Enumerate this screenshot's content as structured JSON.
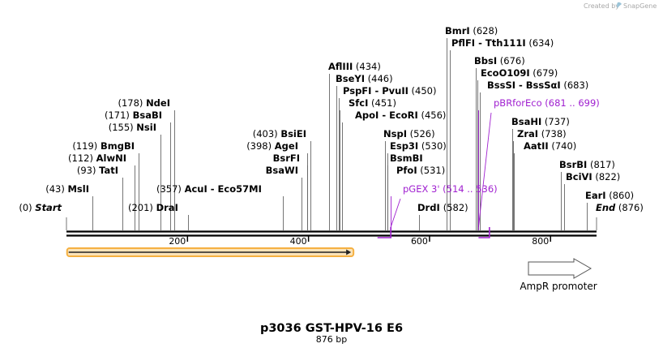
{
  "credit": {
    "text": "Created by",
    "brand": "SnapGene"
  },
  "title": "p3036 GST-HPV-16 E6",
  "subtitle": "876 bp",
  "scale": {
    "min": 0,
    "max": 876,
    "ticks": [
      200,
      400,
      600,
      800
    ]
  },
  "labels": [
    {
      "name": "Start",
      "pos": 0,
      "label_pos": "(0)",
      "kind": "end",
      "anchor": "end"
    },
    {
      "name": "MslI",
      "pos": 43,
      "label_pos": "(43)",
      "kind": "enzyme",
      "anchor": "end"
    },
    {
      "name": "TatI",
      "pos": 93,
      "label_pos": "(93)",
      "kind": "enzyme",
      "anchor": "end"
    },
    {
      "name": "AlwNI",
      "pos": 112,
      "label_pos": "(112)",
      "kind": "enzyme",
      "anchor": "end"
    },
    {
      "name": "BmgBI",
      "pos": 119,
      "label_pos": "(119)",
      "kind": "enzyme",
      "anchor": "end"
    },
    {
      "name": "NsiI",
      "pos": 155,
      "label_pos": "(155)",
      "kind": "enzyme",
      "anchor": "end"
    },
    {
      "name": "BsaBI",
      "pos": 171,
      "label_pos": "(171)",
      "kind": "enzyme",
      "anchor": "end"
    },
    {
      "name": "NdeI",
      "pos": 178,
      "label_pos": "(178)",
      "kind": "enzyme",
      "anchor": "end"
    },
    {
      "name": "DraI",
      "pos": 201,
      "label_pos": "(201)",
      "kind": "enzyme",
      "anchor": "start"
    },
    {
      "name": "AcuI  -  Eco57MI",
      "pos": 357,
      "label_pos": "(357)",
      "kind": "enzyme",
      "anchor": "end"
    },
    {
      "name": "BsaWI",
      "pos": 388,
      "label_pos": "",
      "kind": "enzyme",
      "anchor": "end"
    },
    {
      "name": "BsrFI",
      "pos": 398,
      "label_pos": "",
      "kind": "enzyme",
      "anchor": "end"
    },
    {
      "name": "AgeI",
      "pos": 398,
      "label_pos": "(398)",
      "kind": "enzyme",
      "anchor": "end"
    },
    {
      "name": "BsiEI",
      "pos": 403,
      "label_pos": "(403)",
      "kind": "enzyme",
      "anchor": "end"
    },
    {
      "name": "AflIII",
      "pos": 434,
      "label_pos": "(434)",
      "kind": "enzyme",
      "anchor": "start"
    },
    {
      "name": "BseYI",
      "pos": 446,
      "label_pos": "(446)",
      "kind": "enzyme",
      "anchor": "start"
    },
    {
      "name": "PspFI  -  PvuII",
      "pos": 450,
      "label_pos": "(450)",
      "kind": "enzyme",
      "anchor": "start"
    },
    {
      "name": "SfcI",
      "pos": 451,
      "label_pos": "(451)",
      "kind": "enzyme",
      "anchor": "start"
    },
    {
      "name": "ApoI  -  EcoRI",
      "pos": 456,
      "label_pos": "(456)",
      "kind": "enzyme",
      "anchor": "start"
    },
    {
      "name": "NspI",
      "pos": 526,
      "label_pos": "(526)",
      "kind": "enzyme",
      "anchor": "start"
    },
    {
      "name": "Esp3I",
      "pos": 530,
      "label_pos": "(530)",
      "kind": "enzyme",
      "anchor": "start"
    },
    {
      "name": "BsmBI",
      "pos": 530,
      "label_pos": "",
      "kind": "enzyme",
      "anchor": "start"
    },
    {
      "name": "PfoI",
      "pos": 531,
      "label_pos": "(531)",
      "kind": "enzyme",
      "anchor": "start"
    },
    {
      "name": "pGEX 3'",
      "pos": 536,
      "label_pos": "(514 .. 536)",
      "kind": "primer",
      "anchor": "start"
    },
    {
      "name": "DrdI",
      "pos": 582,
      "label_pos": "(582)",
      "kind": "enzyme",
      "anchor": "end"
    },
    {
      "name": "BmrI",
      "pos": 628,
      "label_pos": "(628)",
      "kind": "enzyme",
      "anchor": "start"
    },
    {
      "name": "PflFI  -  Tth111I",
      "pos": 634,
      "label_pos": "(634)",
      "kind": "enzyme",
      "anchor": "start"
    },
    {
      "name": "BbsI",
      "pos": 676,
      "label_pos": "(676)",
      "kind": "enzyme",
      "anchor": "start"
    },
    {
      "name": "EcoO109I",
      "pos": 679,
      "label_pos": "(679)",
      "kind": "enzyme",
      "anchor": "start"
    },
    {
      "name": "BssSI  -  BssSαI",
      "pos": 683,
      "label_pos": "(683)",
      "kind": "enzyme",
      "anchor": "start"
    },
    {
      "name": "pBRforEco",
      "pos": 681,
      "label_pos": "(681 .. 699)",
      "kind": "primer",
      "anchor": "start"
    },
    {
      "name": "BsaHI",
      "pos": 737,
      "label_pos": "(737)",
      "kind": "enzyme",
      "anchor": "start"
    },
    {
      "name": "ZraI",
      "pos": 738,
      "label_pos": "(738)",
      "kind": "enzyme",
      "anchor": "start"
    },
    {
      "name": "AatII",
      "pos": 740,
      "label_pos": "(740)",
      "kind": "enzyme",
      "anchor": "start"
    },
    {
      "name": "BsrBI",
      "pos": 817,
      "label_pos": "(817)",
      "kind": "enzyme",
      "anchor": "start"
    },
    {
      "name": "BciVI",
      "pos": 822,
      "label_pos": "(822)",
      "kind": "enzyme",
      "anchor": "start"
    },
    {
      "name": "EarI",
      "pos": 860,
      "label_pos": "(860)",
      "kind": "enzyme",
      "anchor": "start"
    },
    {
      "name": "End",
      "pos": 876,
      "label_pos": "(876)",
      "kind": "end",
      "anchor": "start"
    }
  ],
  "features": [
    {
      "name": "",
      "start": 1,
      "end": 469,
      "strand": "forward",
      "color": "#f5b041",
      "type": "orf"
    },
    {
      "name": "AmpR promoter",
      "start": 770,
      "end": 876,
      "strand": "forward",
      "color": "#ffffff",
      "type": "promoter"
    }
  ],
  "primers": [
    {
      "name": "pGEX 3'",
      "start": 514,
      "end": 536,
      "direction": "reverse",
      "color": "#a020d0"
    },
    {
      "name": "pBRforEco",
      "start": 681,
      "end": 699,
      "direction": "reverse",
      "color": "#a020d0"
    }
  ]
}
